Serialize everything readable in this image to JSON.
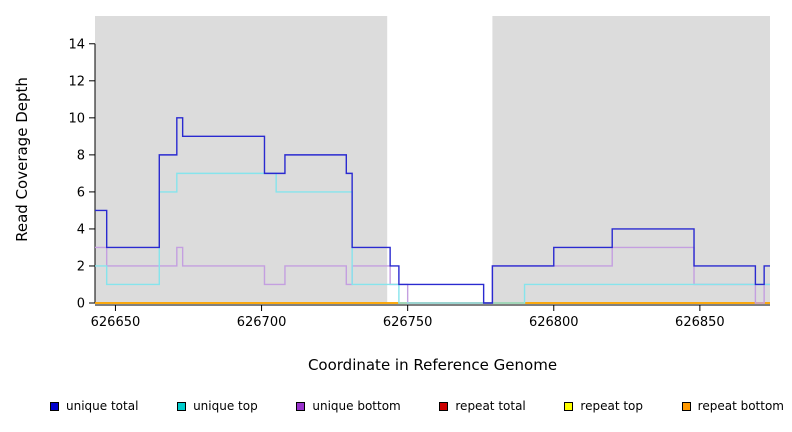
{
  "chart_data": {
    "type": "line",
    "subtype": "step-coverage-plot",
    "title": "",
    "xlabel": "Coordinate in Reference Genome",
    "ylabel": "Read Coverage Depth",
    "xlim": [
      626643,
      626874
    ],
    "ylim": [
      0,
      15.5
    ],
    "xticks": [
      626650,
      626700,
      626750,
      626800,
      626850
    ],
    "yticks": [
      0,
      2,
      4,
      6,
      8,
      10,
      12,
      14
    ],
    "grid": false,
    "legend_position": "bottom",
    "background_color": "#ffffff",
    "shaded_color": "#dcdcdc",
    "shaded_regions": [
      [
        626643,
        626743
      ],
      [
        626779,
        626874
      ]
    ],
    "legend_order": [
      "unique total",
      "unique top",
      "unique bottom",
      "repeat total",
      "repeat top",
      "repeat bottom"
    ],
    "series": [
      {
        "name": "repeat total",
        "legend_label": "repeat total",
        "legend_color": "#cc0000",
        "line_color": "#cc0000",
        "points": [
          [
            626643,
            0
          ]
        ]
      },
      {
        "name": "repeat top",
        "legend_label": "repeat top",
        "legend_color": "#ffff00",
        "line_color": "#ffee00",
        "points": [
          [
            626643,
            0
          ]
        ]
      },
      {
        "name": "repeat bottom",
        "legend_label": "repeat bottom",
        "legend_color": "#ff9900",
        "line_color": "#ffa500",
        "points": [
          [
            626643,
            0
          ]
        ]
      },
      {
        "name": "unique bottom",
        "legend_label": "unique bottom",
        "legend_color": "#9933cc",
        "line_color": "#c49fe0",
        "points": [
          [
            626643,
            3
          ],
          [
            626647,
            2
          ],
          [
            626671,
            3
          ],
          [
            626673,
            2
          ],
          [
            626701,
            1
          ],
          [
            626708,
            2
          ],
          [
            626729,
            1
          ],
          [
            626731,
            2
          ],
          [
            626744,
            1
          ],
          [
            626750,
            0
          ],
          [
            626779,
            2
          ],
          [
            626820,
            3
          ],
          [
            626848,
            1
          ],
          [
            626869,
            0
          ],
          [
            626872,
            1
          ]
        ]
      },
      {
        "name": "unique top",
        "legend_label": "unique top",
        "legend_color": "#00cccc",
        "line_color": "#86e4ec",
        "points": [
          [
            626643,
            2
          ],
          [
            626647,
            1
          ],
          [
            626665,
            6
          ],
          [
            626671,
            7
          ],
          [
            626705,
            6
          ],
          [
            626731,
            1
          ],
          [
            626747,
            0
          ],
          [
            626790,
            1
          ]
        ]
      },
      {
        "name": "unique total",
        "legend_label": "unique total",
        "legend_color": "#0000cc",
        "line_color": "#2a2ad0",
        "points": [
          [
            626643,
            5
          ],
          [
            626647,
            3
          ],
          [
            626665,
            8
          ],
          [
            626671,
            10
          ],
          [
            626673,
            9
          ],
          [
            626701,
            7
          ],
          [
            626708,
            8
          ],
          [
            626729,
            7
          ],
          [
            626731,
            3
          ],
          [
            626744,
            2
          ],
          [
            626747,
            1
          ],
          [
            626776,
            0
          ],
          [
            626779,
            2
          ],
          [
            626800,
            3
          ],
          [
            626820,
            4
          ],
          [
            626848,
            2
          ],
          [
            626869,
            1
          ],
          [
            626872,
            2
          ]
        ]
      }
    ]
  }
}
